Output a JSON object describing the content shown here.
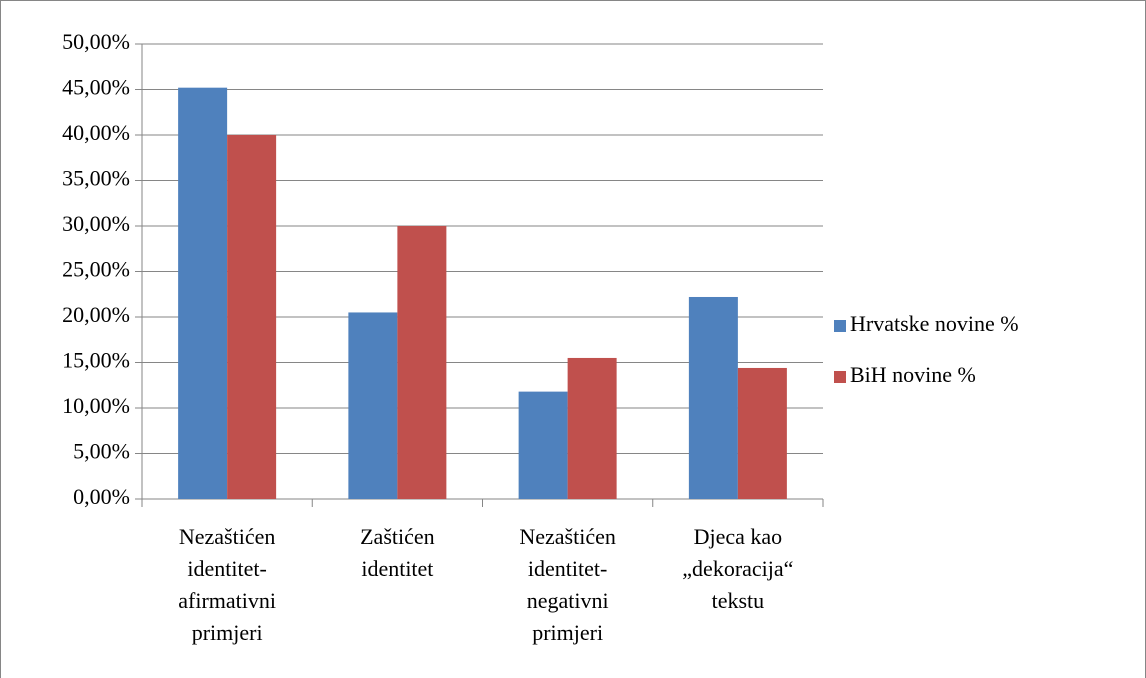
{
  "chart_data": {
    "type": "bar",
    "categories": [
      "Nezaštićen identitet-afirmativni primjeri",
      "Zaštićen identitet",
      "Nezaštićen identitet-negativni primjeri",
      "Djeca kao „dekoracija“ tekstu"
    ],
    "series": [
      {
        "name": "Hrvatske novine %",
        "color": "#4f81bd",
        "values": [
          45.2,
          20.5,
          11.8,
          22.2
        ]
      },
      {
        "name": "BiH novine %",
        "color": "#c0504d",
        "values": [
          40,
          30,
          15.5,
          14.4
        ]
      }
    ],
    "ylim": [
      0,
      50
    ],
    "yticks": [
      {
        "value": 0,
        "label": "0,00%"
      },
      {
        "value": 5,
        "label": "5,00%"
      },
      {
        "value": 10,
        "label": "10,00%"
      },
      {
        "value": 15,
        "label": "15,00%"
      },
      {
        "value": 20,
        "label": "20,00%"
      },
      {
        "value": 25,
        "label": "25,00%"
      },
      {
        "value": 30,
        "label": "30,00%"
      },
      {
        "value": 35,
        "label": "35,00%"
      },
      {
        "value": 40,
        "label": "40,00%"
      },
      {
        "value": 45,
        "label": "45,00%"
      },
      {
        "value": 50,
        "label": "50,00%"
      }
    ],
    "grid": true,
    "legend": "right"
  }
}
